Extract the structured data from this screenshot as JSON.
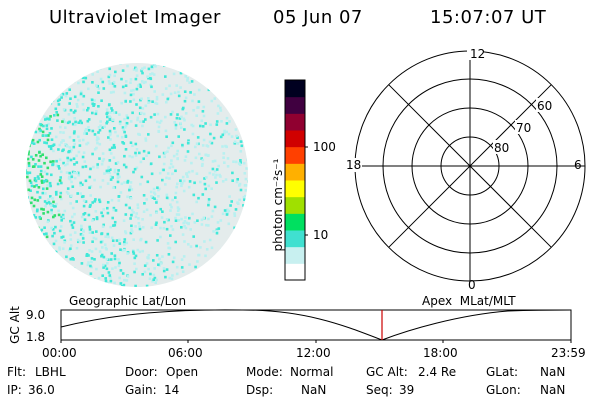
{
  "header": {
    "instrument": "Ultraviolet Imager",
    "date": "05 Jun 07",
    "time": "15:07:07 UT"
  },
  "colorbar": {
    "unit_label": "photon cm⁻²s⁻¹",
    "ticks": [
      "100",
      "10"
    ],
    "colors": [
      "#ffffff",
      "#c8f0f0",
      "#40e0d0",
      "#00e060",
      "#a0e000",
      "#ffff00",
      "#ffb000",
      "#ff4000",
      "#d00000",
      "#900030",
      "#400040",
      "#000020"
    ]
  },
  "polar": {
    "mlt_labels": {
      "top": "12",
      "left": "18",
      "right": "6",
      "bottom": "0"
    },
    "lat_labels": [
      "60",
      "70",
      "80"
    ]
  },
  "timeline": {
    "left_label": "Geographic Lat/Lon",
    "right_label": "Apex  MLat/MLT",
    "ylabel": "GC Alt",
    "ytick_top": "9.0",
    "ytick_bottom": "1.8",
    "xticks": [
      "00:00",
      "06:00",
      "12:00",
      "18:00",
      "23:59"
    ],
    "marker_color": "#cc0000"
  },
  "footer": {
    "row1": [
      {
        "label": "Flt:",
        "value": "LBHL"
      },
      {
        "label": "Door:",
        "value": "Open"
      },
      {
        "label": "Mode:",
        "value": "Normal"
      },
      {
        "label": "GC Alt:",
        "value": "2.4 Re"
      },
      {
        "label": "GLat:",
        "value": "NaN"
      }
    ],
    "row2": [
      {
        "label": "IP:",
        "value": "36.0"
      },
      {
        "label": "Gain:",
        "value": "14"
      },
      {
        "label": "Dsp:",
        "value": "NaN"
      },
      {
        "label": "Seq:",
        "value": "39"
      },
      {
        "label": "GLon:",
        "value": "NaN"
      }
    ]
  },
  "colors": {
    "earth_base": "#e4ecec",
    "speckle_light": "#b8f0f0",
    "speckle_cyan": "#40e8d8",
    "speckle_green": "#30e070"
  }
}
